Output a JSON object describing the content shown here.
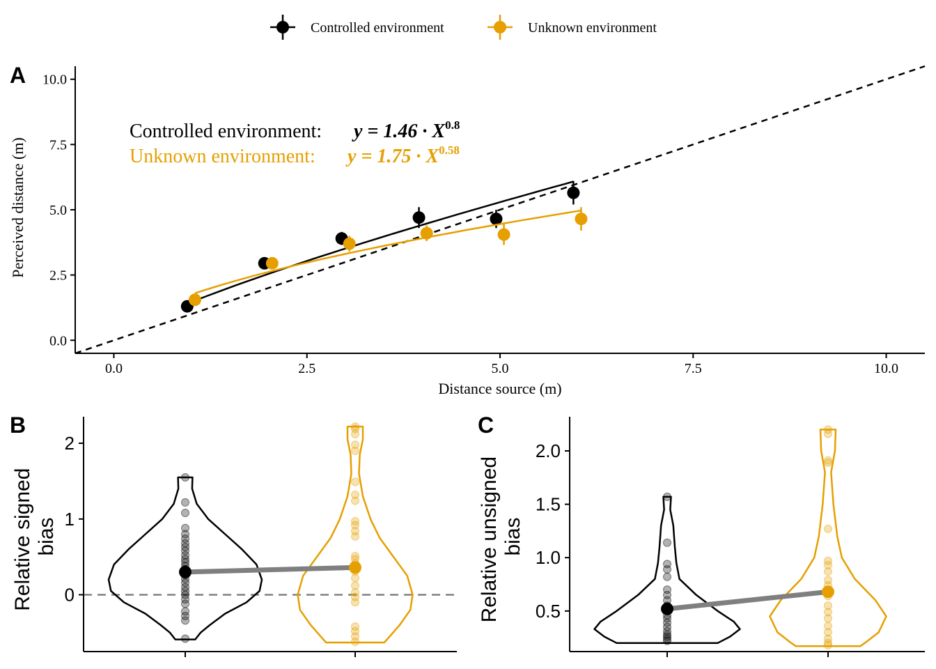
{
  "legend": {
    "items": [
      {
        "label": "Controlled environment",
        "color": "#000000"
      },
      {
        "label": "Unknown environment",
        "color": "#E69F00"
      }
    ]
  },
  "panels": {
    "a": {
      "tag": "A"
    },
    "b": {
      "tag": "B"
    },
    "c": {
      "tag": "C"
    }
  },
  "annotations": {
    "controlled": {
      "label": "Controlled environment:",
      "equation": "y = 1.46 · X",
      "exponent": "0.8"
    },
    "unknown": {
      "label": "Unknown environment:",
      "equation": "y = 1.75 · X",
      "exponent": "0.58"
    }
  },
  "colors": {
    "controlled": "#000000",
    "unknown": "#E69F00",
    "mean_line": "#7f7f7f",
    "reference": "#808080"
  },
  "chart_data": [
    {
      "type": "scatter",
      "panel": "A",
      "xlabel": "Distance source (m)",
      "ylabel": "Perceived distance (m)",
      "xlim": [
        -0.5,
        10.5
      ],
      "ylim": [
        -0.5,
        10.5
      ],
      "xticks": [
        0.0,
        2.5,
        5.0,
        7.5,
        10.0
      ],
      "yticks": [
        0.0,
        2.5,
        5.0,
        7.5,
        10.0
      ],
      "xtick_labels": [
        "0.0",
        "2.5",
        "5.0",
        "7.5",
        "10.0"
      ],
      "ytick_labels": [
        "0.0",
        "2.5",
        "5.0",
        "7.5",
        "10.0"
      ],
      "reference_line": "y = x",
      "series": [
        {
          "name": "Controlled environment",
          "x": [
            0.95,
            1.95,
            2.95,
            3.95,
            4.95,
            5.95
          ],
          "y": [
            1.3,
            2.95,
            3.9,
            4.7,
            4.65,
            5.65
          ],
          "err": [
            0.2,
            0.15,
            0.25,
            0.4,
            0.35,
            0.45
          ],
          "fit": {
            "a": 1.46,
            "b": 0.8
          }
        },
        {
          "name": "Unknown environment",
          "x": [
            1.05,
            2.05,
            3.05,
            4.05,
            5.05,
            6.05
          ],
          "y": [
            1.55,
            2.95,
            3.7,
            4.1,
            4.05,
            4.65
          ],
          "err": [
            0.2,
            0.2,
            0.3,
            0.3,
            0.4,
            0.45
          ],
          "fit": {
            "a": 1.75,
            "b": 0.58
          }
        }
      ]
    },
    {
      "type": "violin",
      "panel": "B",
      "ylabel": "Relative signed\nbias",
      "ylim": [
        -0.75,
        2.35
      ],
      "yticks": [
        0,
        1,
        2
      ],
      "ytick_labels": [
        "0",
        "1",
        "2"
      ],
      "reference_line_y": 0,
      "groups": [
        {
          "name": "Controlled environment",
          "mean": 0.3,
          "points": [
            1.55,
            1.22,
            1.08,
            0.88,
            0.8,
            0.74,
            0.68,
            0.63,
            0.58,
            0.52,
            0.47,
            0.43,
            0.38,
            0.34,
            0.3,
            0.26,
            0.21,
            0.16,
            0.1,
            0.05,
            0.0,
            -0.06,
            -0.12,
            -0.22,
            -0.28,
            -0.34,
            -0.58
          ],
          "violin": {
            "max": 1.55,
            "min": -0.59,
            "halfwidth": [
              [
                1.55,
                0.095
              ],
              [
                1.4,
                0.09
              ],
              [
                1.2,
                0.15
              ],
              [
                1.0,
                0.3
              ],
              [
                0.8,
                0.52
              ],
              [
                0.6,
                0.74
              ],
              [
                0.4,
                0.93
              ],
              [
                0.2,
                1.0
              ],
              [
                0.05,
                0.97
              ],
              [
                -0.1,
                0.8
              ],
              [
                -0.25,
                0.52
              ],
              [
                -0.4,
                0.32
              ],
              [
                -0.5,
                0.2
              ],
              [
                -0.59,
                0.13
              ]
            ]
          }
        },
        {
          "name": "Unknown environment",
          "mean": 0.36,
          "points": [
            2.22,
            2.19,
            2.12,
            1.98,
            1.9,
            1.49,
            1.32,
            1.24,
            0.97,
            0.92,
            0.84,
            0.77,
            0.51,
            0.47,
            0.41,
            0.35,
            0.31,
            0.22,
            0.12,
            0.03,
            -0.03,
            -0.1,
            -0.42,
            -0.48,
            -0.55,
            -0.62
          ],
          "violin": {
            "max": 2.22,
            "min": -0.63,
            "halfwidth": [
              [
                2.22,
                0.1
              ],
              [
                2.05,
                0.1
              ],
              [
                1.85,
                0.06
              ],
              [
                1.6,
                0.05
              ],
              [
                1.3,
                0.1
              ],
              [
                1.0,
                0.2
              ],
              [
                0.75,
                0.32
              ],
              [
                0.5,
                0.5
              ],
              [
                0.25,
                0.68
              ],
              [
                0.0,
                0.75
              ],
              [
                -0.2,
                0.72
              ],
              [
                -0.4,
                0.58
              ],
              [
                -0.55,
                0.45
              ],
              [
                -0.63,
                0.38
              ]
            ]
          }
        }
      ]
    },
    {
      "type": "violin",
      "panel": "C",
      "ylabel": "Relative unsigned\nbias",
      "ylim": [
        0.12,
        2.32
      ],
      "yticks": [
        0.5,
        1.0,
        1.5,
        2.0
      ],
      "ytick_labels": [
        "0.5",
        "1.0",
        "1.5",
        "2.0"
      ],
      "groups": [
        {
          "name": "Controlled environment",
          "mean": 0.52,
          "points": [
            1.57,
            1.14,
            0.94,
            0.89,
            0.82,
            0.7,
            0.65,
            0.6,
            0.55,
            0.5,
            0.46,
            0.43,
            0.39,
            0.35,
            0.31,
            0.28,
            0.26,
            0.24,
            0.22
          ],
          "violin": {
            "max": 1.57,
            "min": 0.2,
            "halfwidth": [
              [
                1.57,
                0.05
              ],
              [
                1.45,
                0.04
              ],
              [
                1.3,
                0.08
              ],
              [
                1.1,
                0.1
              ],
              [
                0.95,
                0.12
              ],
              [
                0.8,
                0.16
              ],
              [
                0.65,
                0.38
              ],
              [
                0.5,
                0.66
              ],
              [
                0.4,
                0.87
              ],
              [
                0.33,
                0.95
              ],
              [
                0.26,
                0.82
              ],
              [
                0.2,
                0.66
              ]
            ]
          }
        },
        {
          "name": "Unknown environment",
          "mean": 0.68,
          "points": [
            2.2,
            2.16,
            1.91,
            1.89,
            1.27,
            0.97,
            0.93,
            0.87,
            0.79,
            0.74,
            0.64,
            0.55,
            0.49,
            0.43,
            0.36,
            0.3,
            0.24,
            0.2,
            0.18
          ],
          "violin": {
            "max": 2.2,
            "min": 0.17,
            "halfwidth": [
              [
                2.2,
                0.1
              ],
              [
                2.0,
                0.09
              ],
              [
                1.8,
                0.04
              ],
              [
                1.5,
                0.07
              ],
              [
                1.2,
                0.12
              ],
              [
                1.0,
                0.18
              ],
              [
                0.8,
                0.35
              ],
              [
                0.6,
                0.62
              ],
              [
                0.45,
                0.76
              ],
              [
                0.3,
                0.66
              ],
              [
                0.2,
                0.48
              ],
              [
                0.17,
                0.42
              ]
            ]
          }
        }
      ]
    }
  ]
}
